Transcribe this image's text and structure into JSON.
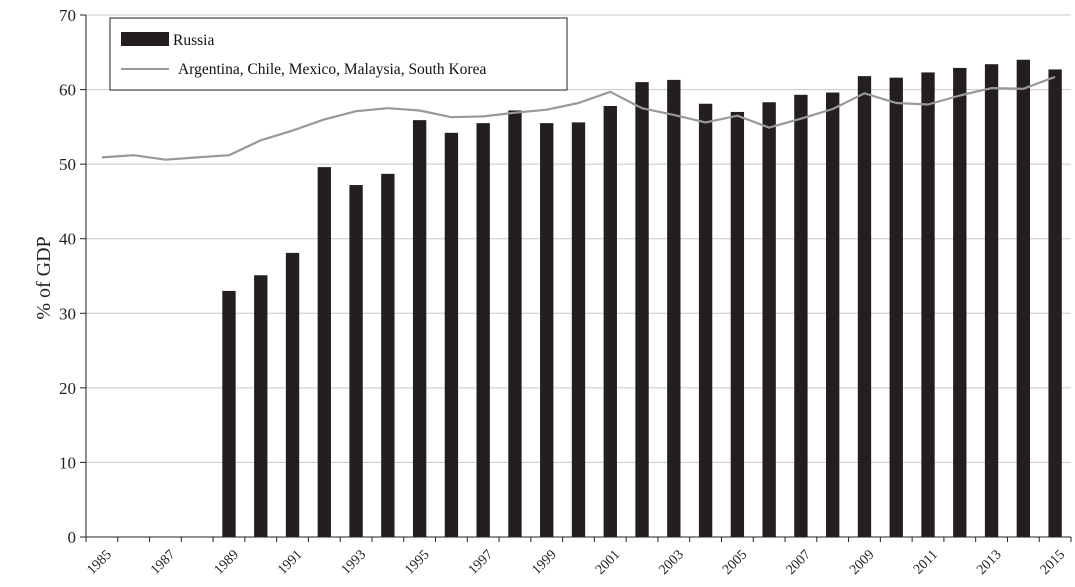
{
  "chart_data": {
    "type": "bar",
    "x": [
      1985,
      1986,
      1987,
      1988,
      1989,
      1990,
      1991,
      1992,
      1993,
      1994,
      1995,
      1996,
      1997,
      1998,
      1999,
      2000,
      2001,
      2002,
      2003,
      2004,
      2005,
      2006,
      2007,
      2008,
      2009,
      2010,
      2011,
      2012,
      2013,
      2014,
      2015
    ],
    "x_tick_labels": [
      "1985",
      "1987",
      "1989",
      "1991",
      "1993",
      "1995",
      "1997",
      "1999",
      "2001",
      "2003",
      "2005",
      "2007",
      "2009",
      "2011",
      "2013",
      "2015"
    ],
    "series": [
      {
        "name": "Russia",
        "kind": "bar",
        "color": "#231f20",
        "values": [
          null,
          null,
          null,
          null,
          33.0,
          35.1,
          38.1,
          49.6,
          47.2,
          48.7,
          55.9,
          54.2,
          55.5,
          57.2,
          55.5,
          55.6,
          57.8,
          61.0,
          61.3,
          58.1,
          57.0,
          58.3,
          59.3,
          59.6,
          61.8,
          61.6,
          62.3,
          62.9,
          63.4,
          64.0,
          62.7
        ]
      },
      {
        "name": "Argentina, Chile, Mexico, Malaysia, South Korea",
        "kind": "line",
        "color": "#999999",
        "values": [
          50.9,
          51.2,
          50.6,
          50.9,
          51.2,
          53.2,
          54.5,
          56.0,
          57.1,
          57.5,
          57.2,
          56.3,
          56.4,
          56.9,
          57.3,
          58.2,
          59.7,
          57.5,
          56.6,
          55.6,
          56.5,
          54.9,
          56.1,
          57.4,
          59.5,
          58.2,
          58.0,
          59.2,
          60.2,
          60.1,
          61.7
        ]
      }
    ],
    "title": "",
    "xlabel": "",
    "ylabel": "% of GDP",
    "ylim": [
      0,
      70
    ],
    "yticks": [
      0,
      10,
      20,
      30,
      40,
      50,
      60,
      70
    ],
    "grid": true,
    "legend_position": "top-left"
  }
}
